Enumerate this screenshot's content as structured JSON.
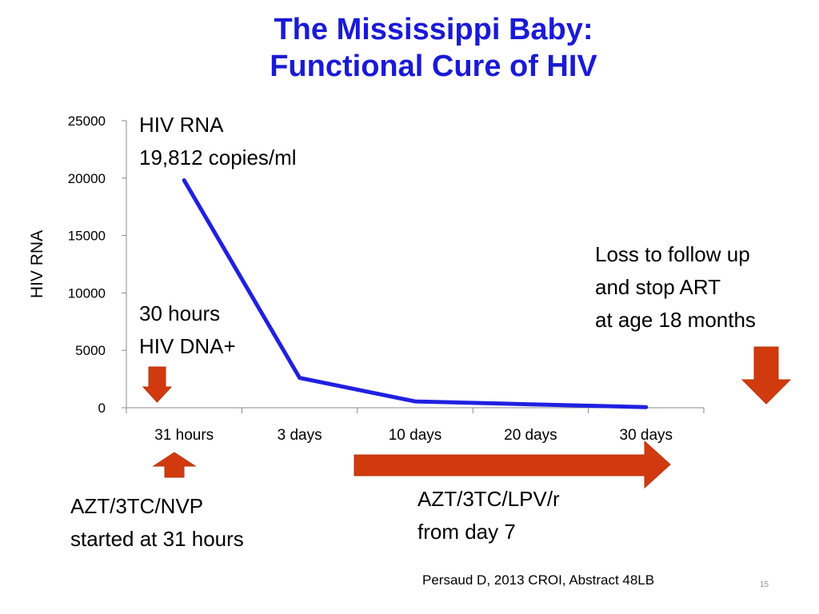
{
  "slide": {
    "title_line1": "The Mississippi Baby:",
    "title_line2": "Functional Cure of HIV",
    "citation": "Persaud D, 2013 CROI, Abstract 48LB",
    "page_number": "15"
  },
  "annotations": {
    "hiv_rna": [
      "HIV RNA",
      "19,812 copies/ml"
    ],
    "hiv_dna": [
      "30 hours",
      "HIV DNA+"
    ],
    "loss_follow_up": [
      "Loss to follow up",
      "and stop ART",
      "at age 18 months"
    ],
    "initial_regimen": [
      "AZT/3TC/NVP",
      "started at 31 hours"
    ],
    "later_regimen": [
      "AZT/3TC/LPV/r",
      "from day 7"
    ]
  },
  "colors": {
    "title": "#1a1ad6",
    "line": "#2020e0",
    "arrow": "#d13a0e",
    "arrow_edge": "#b8320c",
    "axis": "#888888"
  },
  "icons": [
    "arrow-down-icon",
    "arrow-up-icon",
    "arrow-right-icon",
    "arrow-down-icon"
  ],
  "chart_data": {
    "type": "line",
    "categories": [
      "31 hours",
      "3 days",
      "10 days",
      "20 days",
      "30 days"
    ],
    "series": [
      {
        "values": [
          19812,
          2600,
          550,
          300,
          50
        ]
      }
    ],
    "ylabel": "HIV RNA",
    "xlabel": "",
    "ylim": [
      0,
      25000
    ],
    "yticks": [
      0,
      5000,
      10000,
      15000,
      20000,
      25000
    ],
    "grid": false,
    "legend": "none"
  }
}
